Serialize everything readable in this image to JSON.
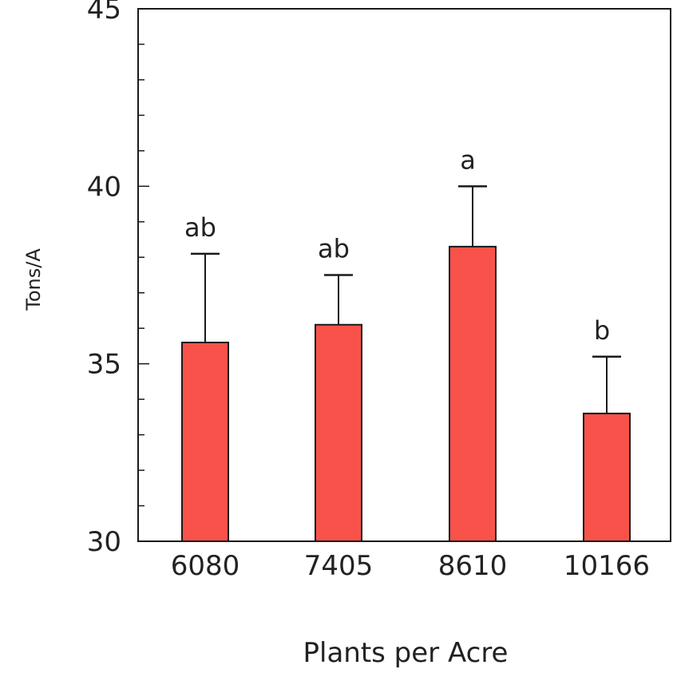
{
  "chart_data": {
    "type": "bar",
    "categories": [
      "6080",
      "7405",
      "8610",
      "10166"
    ],
    "values": [
      35.6,
      36.1,
      38.3,
      33.6
    ],
    "error_upper": [
      38.1,
      37.5,
      40.0,
      35.2
    ],
    "significance_letters": [
      "ab",
      "ab",
      "a",
      "b"
    ],
    "title": "",
    "xlabel": "Plants per Acre",
    "ylabel": "Tons/A",
    "ylim": [
      30,
      45
    ],
    "yticks_major": [
      30,
      35,
      40,
      45
    ],
    "ytick_labels": [
      "30",
      "35",
      "40",
      "45"
    ],
    "minor_tick_step": 1,
    "grid": false,
    "bar_color": "#f9524a",
    "bar_edge_color": "#1a1a1a"
  }
}
